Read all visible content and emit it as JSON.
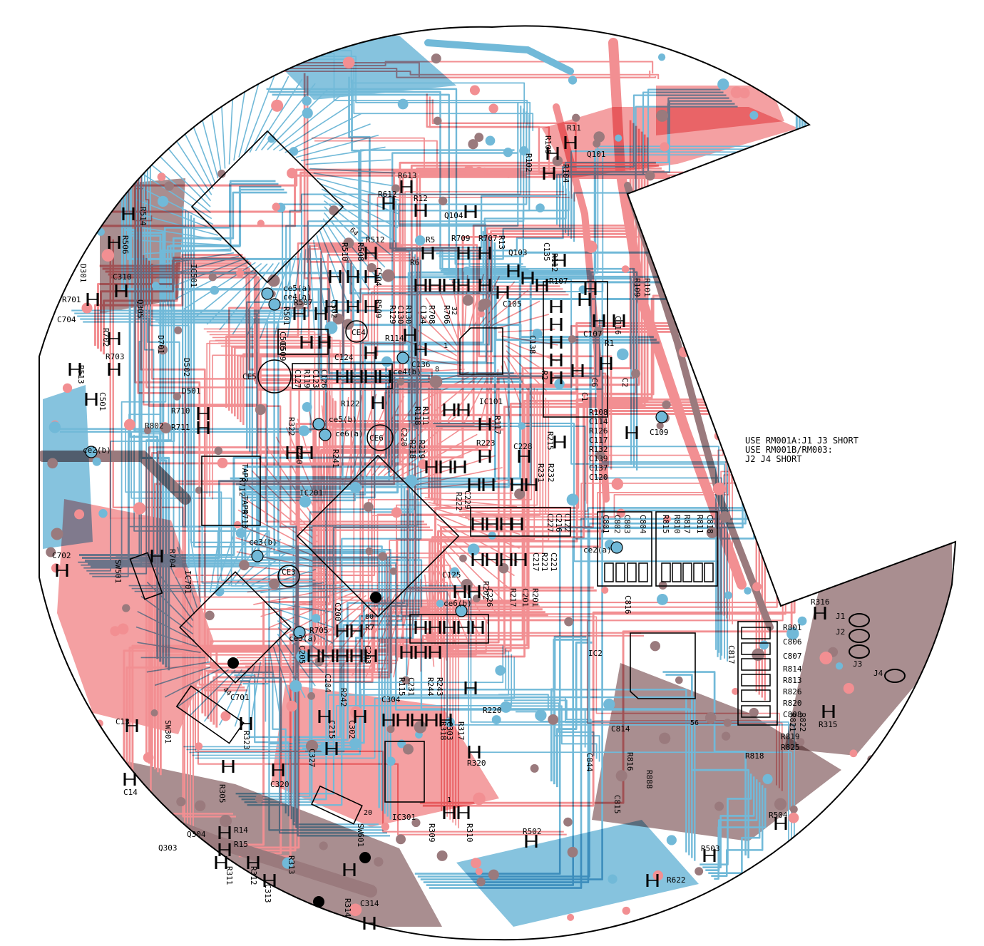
{
  "colors": {
    "top_copper": "#f28f92",
    "bottom_copper": "#71b9d8",
    "overlap": "#9a7a7d",
    "silkscreen": "#000000",
    "board": "#ffffff"
  },
  "note": {
    "line1": "USE RM001A:J1 J3 SHORT",
    "line2": "USE RM001B/RM003:",
    "line3": "J2 J4 SHORT"
  },
  "components": [
    {
      "name": "R11"
    },
    {
      "name": "R105"
    },
    {
      "name": "R102"
    },
    {
      "name": "R104"
    },
    {
      "name": "Q101"
    },
    {
      "name": "R613"
    },
    {
      "name": "R612"
    },
    {
      "name": "R12"
    },
    {
      "name": "Q104"
    },
    {
      "name": "R514"
    },
    {
      "name": "R506"
    },
    {
      "name": "D301"
    },
    {
      "name": "C310"
    },
    {
      "name": "R701"
    },
    {
      "name": "Q305"
    },
    {
      "name": "C704"
    },
    {
      "name": "R702"
    },
    {
      "name": "D701"
    },
    {
      "name": "R703"
    },
    {
      "name": "D502"
    },
    {
      "name": "R513"
    },
    {
      "name": "D501"
    },
    {
      "name": "C501"
    },
    {
      "name": "R710"
    },
    {
      "name": "R802"
    },
    {
      "name": "R711"
    },
    {
      "name": "ce2(b)"
    },
    {
      "name": "IC501"
    },
    {
      "name": "ce5(a)"
    },
    {
      "name": "ce4(a)"
    },
    {
      "name": "R501"
    },
    {
      "name": "R507"
    },
    {
      "name": "C502"
    },
    {
      "name": "R509"
    },
    {
      "name": "R510"
    },
    {
      "name": "R508"
    },
    {
      "name": "C504"
    },
    {
      "name": "R512"
    },
    {
      "name": "C506"
    },
    {
      "name": "C509"
    },
    {
      "name": "CE5"
    },
    {
      "name": "CE4"
    },
    {
      "name": "C124"
    },
    {
      "name": "R114"
    },
    {
      "name": "C136"
    },
    {
      "name": "ce4(b)"
    },
    {
      "name": "R119"
    },
    {
      "name": "C126"
    },
    {
      "name": "C123"
    },
    {
      "name": "C127"
    },
    {
      "name": "R122"
    },
    {
      "name": "R5"
    },
    {
      "name": "R709"
    },
    {
      "name": "R707"
    },
    {
      "name": "R13"
    },
    {
      "name": "R6"
    },
    {
      "name": "Q103"
    },
    {
      "name": "C135"
    },
    {
      "name": "R112"
    },
    {
      "name": "R107"
    },
    {
      "name": "R129"
    },
    {
      "name": "C130"
    },
    {
      "name": "R130"
    },
    {
      "name": "C134"
    },
    {
      "name": "R708"
    },
    {
      "name": "R706"
    },
    {
      "name": "C105"
    },
    {
      "name": "C138"
    },
    {
      "name": "R109"
    },
    {
      "name": "R101"
    },
    {
      "name": "C116"
    },
    {
      "name": "C107"
    },
    {
      "name": "R1"
    },
    {
      "name": "R2"
    },
    {
      "name": "C6"
    },
    {
      "name": "C2"
    },
    {
      "name": "C1"
    },
    {
      "name": "IC101"
    },
    {
      "name": "R118"
    },
    {
      "name": "R111"
    },
    {
      "name": "R117"
    },
    {
      "name": "C109"
    },
    {
      "name": "R322"
    },
    {
      "name": "ce5(b)"
    },
    {
      "name": "ce6(a)"
    },
    {
      "name": "CE6"
    },
    {
      "name": "R240"
    },
    {
      "name": "R241"
    },
    {
      "name": "C220"
    },
    {
      "name": "R218"
    },
    {
      "name": "R219"
    },
    {
      "name": "R223"
    },
    {
      "name": "C228"
    },
    {
      "name": "R215"
    },
    {
      "name": "R108"
    },
    {
      "name": "C114"
    },
    {
      "name": "R126"
    },
    {
      "name": "C117"
    },
    {
      "name": "R132"
    },
    {
      "name": "C139"
    },
    {
      "name": "C137"
    },
    {
      "name": "C120"
    },
    {
      "name": "TAP3"
    },
    {
      "name": "R712"
    },
    {
      "name": "TAP4"
    },
    {
      "name": "R713"
    },
    {
      "name": "IC201"
    },
    {
      "name": "R231"
    },
    {
      "name": "R232"
    },
    {
      "name": "C229"
    },
    {
      "name": "R222"
    },
    {
      "name": "C122"
    },
    {
      "name": "C216"
    },
    {
      "name": "C227"
    },
    {
      "name": "C801"
    },
    {
      "name": "C802"
    },
    {
      "name": "C803"
    },
    {
      "name": "C804"
    },
    {
      "name": "R815"
    },
    {
      "name": "R810"
    },
    {
      "name": "R817"
    },
    {
      "name": "R811"
    },
    {
      "name": "C818"
    },
    {
      "name": "ce2(a)"
    },
    {
      "name": "C702"
    },
    {
      "name": "R704"
    },
    {
      "name": "SW501"
    },
    {
      "name": "IC701"
    },
    {
      "name": "ce3(b)"
    },
    {
      "name": "CE3"
    },
    {
      "name": "C221"
    },
    {
      "name": "R221"
    },
    {
      "name": "C217"
    },
    {
      "name": "C125"
    },
    {
      "name": "C226"
    },
    {
      "name": "R202"
    },
    {
      "name": "R217"
    },
    {
      "name": "C201"
    },
    {
      "name": "R201"
    },
    {
      "name": "ce6(b)"
    },
    {
      "name": "C816"
    },
    {
      "name": "C200"
    },
    {
      "name": "R705"
    },
    {
      "name": "R7"
    },
    {
      "name": "ce3(a)"
    },
    {
      "name": "C205"
    },
    {
      "name": "C203"
    },
    {
      "name": "IC2"
    },
    {
      "name": "C817"
    },
    {
      "name": "R316"
    },
    {
      "name": "J1"
    },
    {
      "name": "J2"
    },
    {
      "name": "J3"
    },
    {
      "name": "J4"
    },
    {
      "name": "R801"
    },
    {
      "name": "C806"
    },
    {
      "name": "C807"
    },
    {
      "name": "R814"
    },
    {
      "name": "R813"
    },
    {
      "name": "R826"
    },
    {
      "name": "R820"
    },
    {
      "name": "R821"
    },
    {
      "name": "R822"
    },
    {
      "name": "C808"
    },
    {
      "name": "R315"
    },
    {
      "name": "R819"
    },
    {
      "name": "R825"
    },
    {
      "name": "R818"
    },
    {
      "name": "C204"
    },
    {
      "name": "R242"
    },
    {
      "name": "R115"
    },
    {
      "name": "C231"
    },
    {
      "name": "R244"
    },
    {
      "name": "R243"
    },
    {
      "name": "R220"
    },
    {
      "name": "C304"
    },
    {
      "name": "C701"
    },
    {
      "name": "R323"
    },
    {
      "name": "SW301"
    },
    {
      "name": "C13"
    },
    {
      "name": "C215"
    },
    {
      "name": "C302"
    },
    {
      "name": "R317"
    },
    {
      "name": "C303"
    },
    {
      "name": "R318"
    },
    {
      "name": "C327"
    },
    {
      "name": "R320"
    },
    {
      "name": "C814"
    },
    {
      "name": "C844"
    },
    {
      "name": "R816"
    },
    {
      "name": "R888"
    },
    {
      "name": "C815"
    },
    {
      "name": "C14"
    },
    {
      "name": "R305"
    },
    {
      "name": "C320"
    },
    {
      "name": "IC301"
    },
    {
      "name": "SW601"
    },
    {
      "name": "R309"
    },
    {
      "name": "R310"
    },
    {
      "name": "R504"
    },
    {
      "name": "R502"
    },
    {
      "name": "R503"
    },
    {
      "name": "Q304"
    },
    {
      "name": "R14"
    },
    {
      "name": "Q303"
    },
    {
      "name": "R15"
    },
    {
      "name": "R311"
    },
    {
      "name": "R312"
    },
    {
      "name": "R313"
    },
    {
      "name": "C313"
    },
    {
      "name": "R314"
    },
    {
      "name": "C314"
    },
    {
      "name": "R622"
    }
  ],
  "pin_marks": [
    {
      "text": "64"
    },
    {
      "text": "32"
    },
    {
      "text": "1"
    },
    {
      "text": "8"
    },
    {
      "text": "80"
    },
    {
      "text": "44"
    },
    {
      "text": "56"
    },
    {
      "text": "20"
    },
    {
      "text": "1"
    }
  ]
}
